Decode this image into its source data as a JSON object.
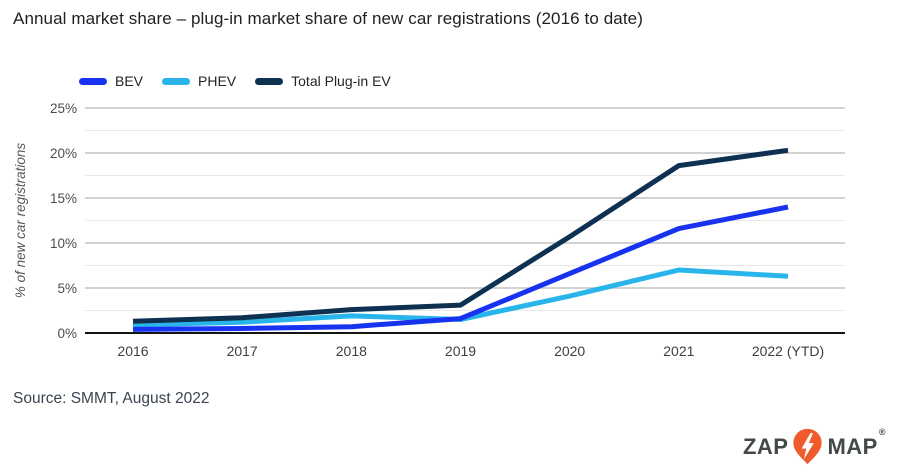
{
  "title": "Annual market share – plug-in market share of new car registrations (2016 to date)",
  "source_note": "Source: SMMT, August 2022",
  "logo": {
    "word_left": "ZAP",
    "word_right": "MAP",
    "registered_mark": "®"
  },
  "colors": {
    "bev": "#1733f0",
    "phev": "#29b5ea",
    "total": "#0e3152",
    "grid_major": "#c3c3c3",
    "grid_minor": "#e8e8e8",
    "axis": "#141414",
    "tick_text": "#4d4d4d",
    "axis_title_text": "#565656",
    "logo_orange": "#f05b2b"
  },
  "chart_data": {
    "type": "line",
    "categories": [
      "2016",
      "2017",
      "2018",
      "2019",
      "2020",
      "2021",
      "2022 (YTD)"
    ],
    "series": [
      {
        "name": "BEV",
        "color_key": "bev",
        "values": [
          0.4,
          0.5,
          0.7,
          1.6,
          6.6,
          11.6,
          14.0
        ]
      },
      {
        "name": "PHEV",
        "color_key": "phev",
        "values": [
          0.9,
          1.2,
          1.9,
          1.5,
          4.1,
          7.0,
          6.3
        ]
      },
      {
        "name": "Total Plug-in EV",
        "color_key": "total",
        "values": [
          1.3,
          1.7,
          2.6,
          3.1,
          10.7,
          18.6,
          20.3
        ]
      }
    ],
    "xlabel": "",
    "ylabel": "% of new car registrations",
    "ylim": [
      0,
      25
    ],
    "ytick_step": 5,
    "ytick_minor_step": 2.5,
    "yticks": [
      "0%",
      "5%",
      "10%",
      "15%",
      "20%",
      "25%"
    ],
    "ytick_suffix": "%",
    "grid": true,
    "legend_position": "top-left"
  }
}
